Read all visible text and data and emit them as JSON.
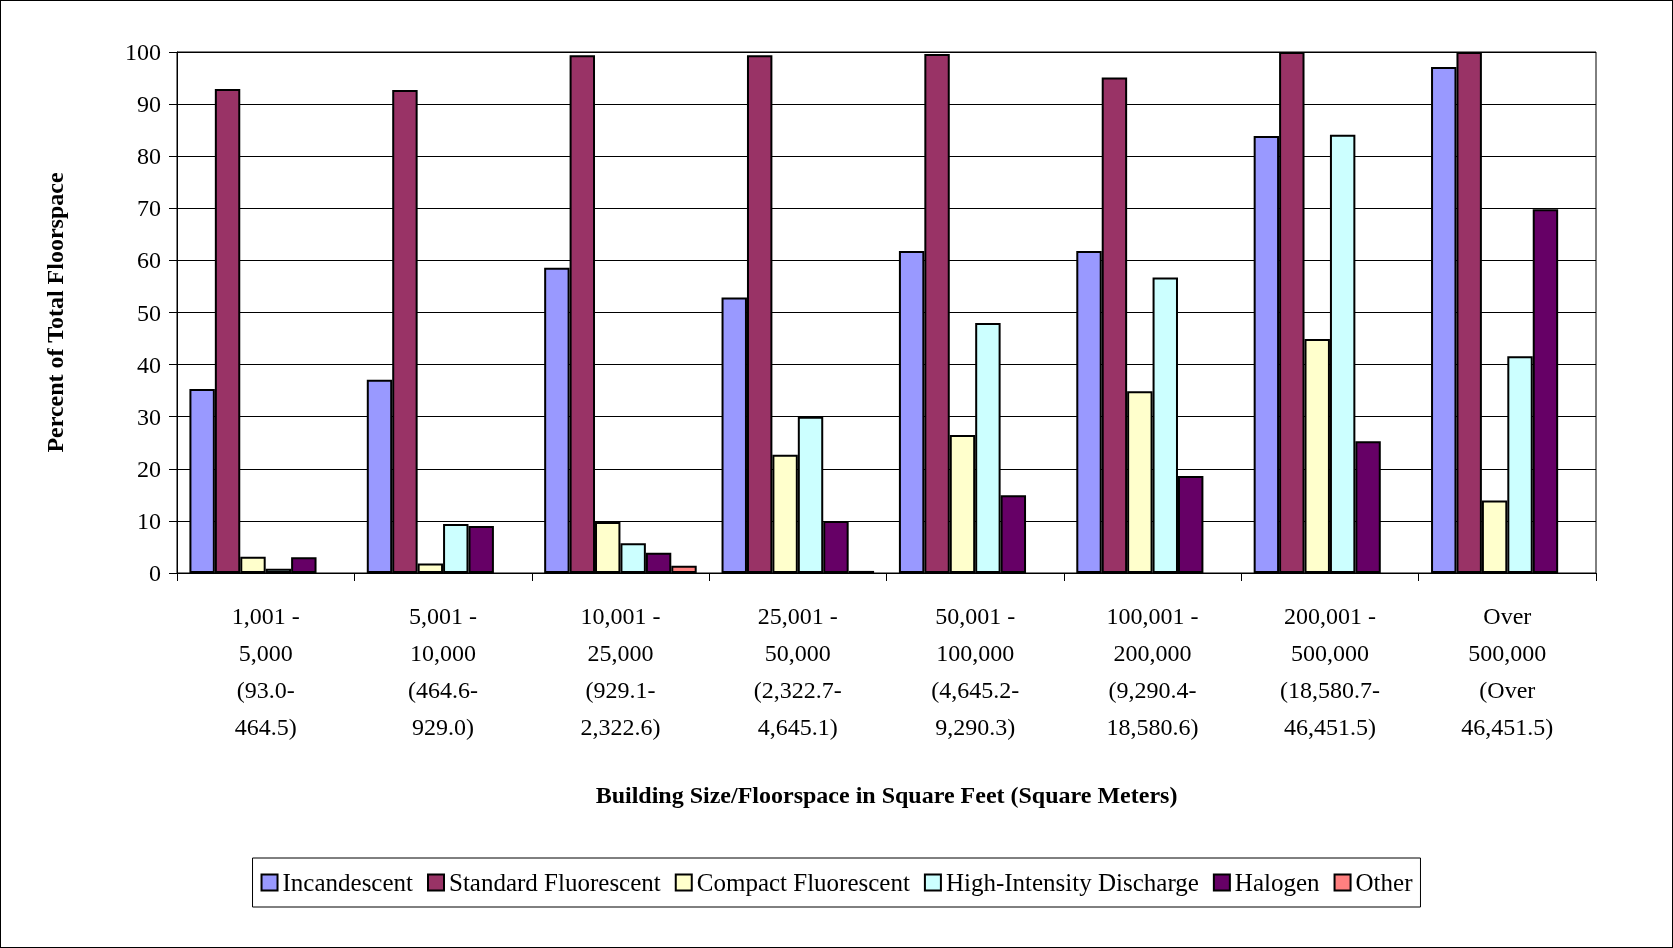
{
  "chart_data": {
    "type": "bar",
    "xlabel": "Building Size/Floorspace in Square Feet (Square Meters)",
    "ylabel": "Percent of Total Floorspace",
    "categories": [
      "1,001 -\n5,000\n(93.0-\n464.5)",
      "5,001 -\n10,000\n(464.6-\n929.0)",
      "10,001 -\n25,000\n(929.1-\n2,322.6)",
      "25,001 -\n50,000\n(2,322.7-\n4,645.1)",
      "50,001 -\n100,000\n(4,645.2-\n9,290.3)",
      "100,001 -\n200,000\n(9,290.4-\n18,580.6)",
      "200,001 -\n500,000\n(18,580.7-\n46,451.5)",
      "Over\n500,000\n(Over\n46,451.5)"
    ],
    "series": [
      {
        "name": "Incandescent",
        "color": "#9999ff",
        "values": [
          35.3,
          37.1,
          58.6,
          52.9,
          61.8,
          61.8,
          83.9,
          97.1
        ]
      },
      {
        "name": "Standard Fluorescent",
        "color": "#993366",
        "values": [
          92.9,
          92.7,
          99.4,
          99.4,
          99.6,
          95.1,
          100,
          100
        ]
      },
      {
        "name": "Compact Fluorescent",
        "color": "#ffffcc",
        "values": [
          3.1,
          1.8,
          9.8,
          22.7,
          26.5,
          34.9,
          44.9,
          13.9
        ]
      },
      {
        "name": "High-Intensity Discharge",
        "color": "#ccffff",
        "values": [
          0.8,
          9.4,
          5.7,
          30,
          48,
          56.7,
          84.1,
          41.6
        ]
      },
      {
        "name": "Halogen",
        "color": "#660066",
        "values": [
          3,
          9,
          3.9,
          10,
          14.9,
          18.6,
          25.3,
          69.8
        ]
      },
      {
        "name": "Other",
        "color": "#ff8080",
        "values": [
          null,
          null,
          1.4,
          0.4,
          null,
          null,
          null,
          null
        ]
      }
    ],
    "ylim": [
      0,
      100
    ],
    "yticks": [
      0,
      10,
      20,
      30,
      40,
      50,
      60,
      70,
      80,
      90,
      100
    ],
    "grid": "y",
    "legend": "bottom"
  }
}
